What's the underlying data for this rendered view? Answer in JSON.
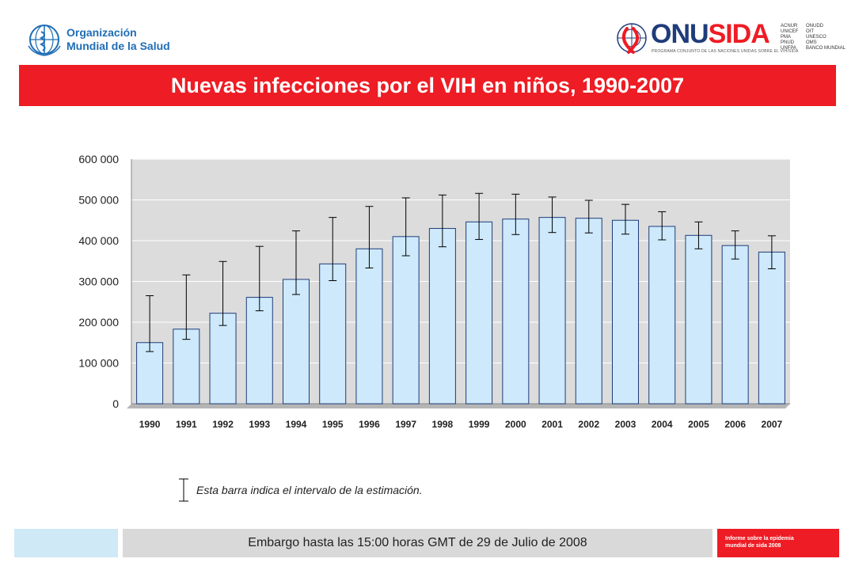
{
  "header": {
    "who_name_line1": "Organización",
    "who_name_line2": "Mundial de la Salud",
    "unaids_word_prefix": "ONU",
    "unaids_word_suffix": "SIDA",
    "unaids_tagline": "PROGRAMA CONJUNTO DE LAS NACIONES UNIDAS SOBRE EL VIH/SIDA",
    "cosponsors_col1": [
      "ACNUR",
      "UNICEF",
      "PMA",
      "PNUD",
      "UNFPA"
    ],
    "cosponsors_col2": [
      "ONUDD",
      "OIT",
      "UNESCO",
      "OMS",
      "BANCO MUNDIAL"
    ]
  },
  "title": "Nuevas infecciones por el VIH en niños, 1990-2007",
  "chart_data": {
    "type": "bar",
    "categories": [
      "1990",
      "1991",
      "1992",
      "1993",
      "1994",
      "1995",
      "1996",
      "1997",
      "1998",
      "1999",
      "2000",
      "2001",
      "2002",
      "2003",
      "2004",
      "2005",
      "2006",
      "2007"
    ],
    "values": [
      150000,
      183000,
      222000,
      261000,
      305000,
      343000,
      380000,
      410000,
      430000,
      446000,
      453000,
      457000,
      455000,
      450000,
      435000,
      413000,
      388000,
      372000
    ],
    "error_low": [
      128000,
      158000,
      192000,
      228000,
      268000,
      302000,
      333000,
      363000,
      385000,
      403000,
      415000,
      420000,
      419000,
      416000,
      402000,
      380000,
      355000,
      331000
    ],
    "error_high": [
      265000,
      316000,
      349000,
      386000,
      424000,
      457000,
      484000,
      505000,
      512000,
      516000,
      514000,
      507000,
      499000,
      489000,
      471000,
      446000,
      424000,
      412000
    ],
    "yticks": [
      "0",
      "100 000",
      "200 000",
      "300 000",
      "400 000",
      "500 000",
      "600 000"
    ],
    "ylim": [
      0,
      600000
    ],
    "grid": true,
    "bar_color": "#cde9fb",
    "plot_background": "#dcdcdc"
  },
  "legend_text": "Esta barra indica el intervalo de la estimación.",
  "footer": {
    "embargo": "Embargo hasta las 15:00 horas GMT de 29 de Julio de 2008",
    "report_line1": "Informe sobre la epidemia",
    "report_line2": "mundial de sida 2008"
  },
  "colors": {
    "accent_red": "#ee1c24",
    "who_blue": "#1f6db5",
    "unaids_blue": "#1f3c7a"
  }
}
